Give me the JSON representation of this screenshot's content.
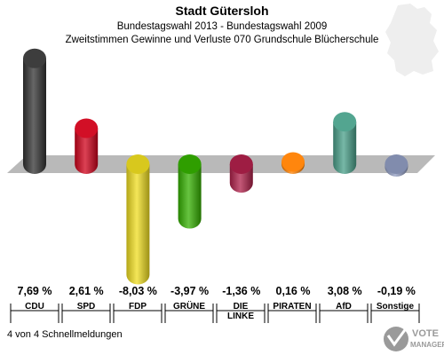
{
  "header": {
    "title": "Stadt Gütersloh",
    "subtitle1": "Bundestagswahl 2013 - Bundestagswahl 2009",
    "subtitle2": "Zweitstimmen Gewinne und Verluste 070 Grundschule Blücherschule"
  },
  "footer": {
    "note": "4 von 4 Schnellmeldungen",
    "logo_text": "VOTE MANAGER"
  },
  "chart_data": {
    "type": "bar",
    "categories": [
      "CDU",
      "SPD",
      "FDP",
      "GRÜNE",
      "DIE LINKE",
      "PIRATEN",
      "AfD",
      "Sonstige"
    ],
    "category_lines": [
      [
        "CDU"
      ],
      [
        "SPD"
      ],
      [
        "FDP"
      ],
      [
        "GRÜNE"
      ],
      [
        "DIE",
        "LINKE"
      ],
      [
        "PIRATEN"
      ],
      [
        "AfD"
      ],
      [
        "Sonstige"
      ]
    ],
    "values": [
      7.69,
      2.61,
      -8.03,
      -3.97,
      -1.36,
      0.16,
      3.08,
      -0.19
    ],
    "value_labels": [
      "7,69 %",
      "2,61 %",
      "-8,03 %",
      "-3,97 %",
      "-1,36 %",
      "0,16 %",
      "3,08 %",
      "-0,19 %"
    ],
    "colors": [
      "#333333",
      "#d0021b",
      "#f0de20",
      "#34b000",
      "#b0204a",
      "#ff8000",
      "#4aa08a",
      "#8f9bc0"
    ],
    "title": "Stadt Gütersloh",
    "subtitle": "Bundestagswahl 2013 - Bundestagswahl 2009 | Zweitstimmen Gewinne und Verluste 070 Grundschule Blücherschule",
    "xlabel": "",
    "ylabel": "",
    "ylim": [
      -8.03,
      7.69
    ],
    "grid": false,
    "legend": "none"
  }
}
